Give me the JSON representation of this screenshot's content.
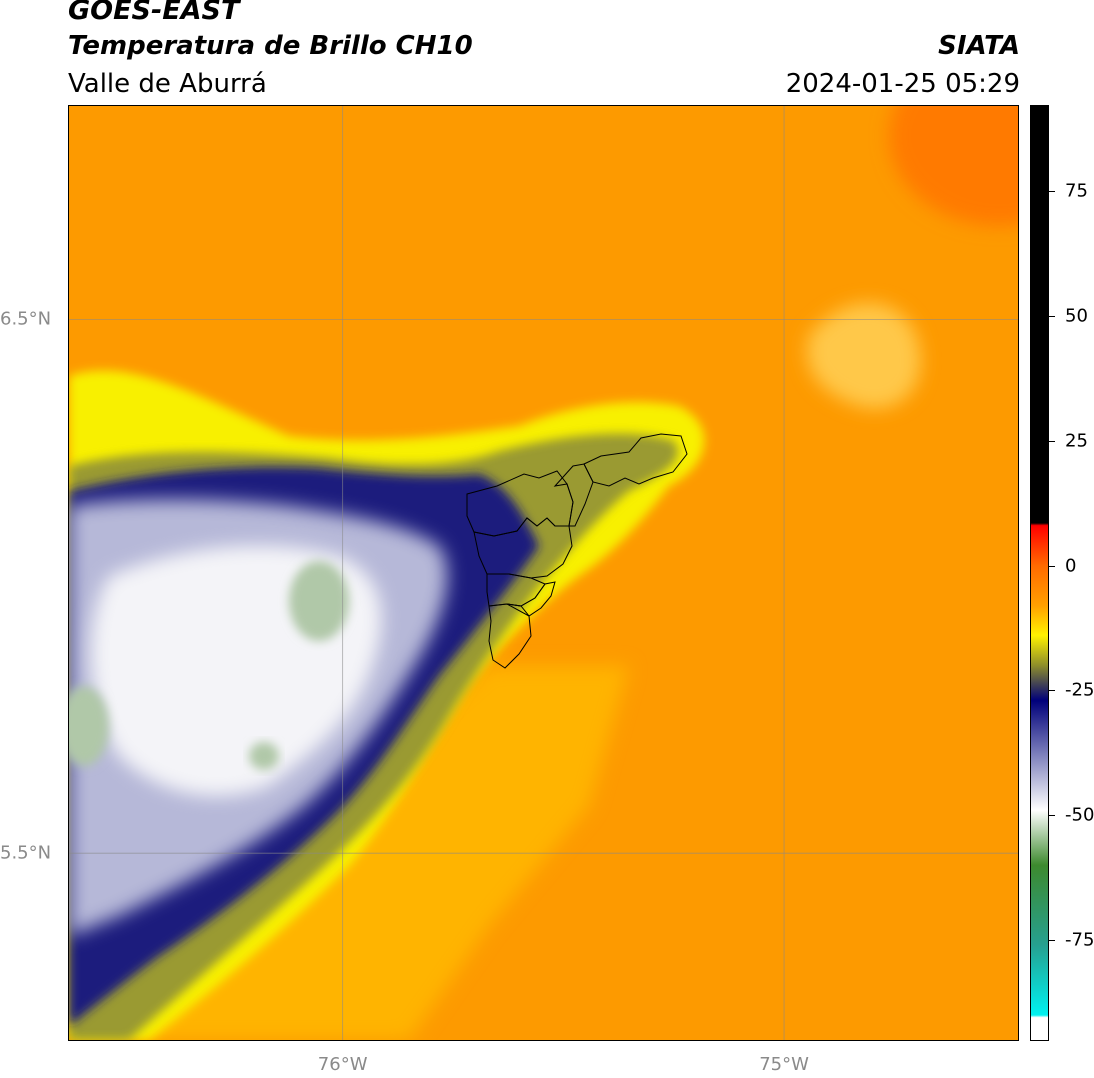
{
  "header": {
    "satellite": "GOES-EAST",
    "product": "Temperatura de Brillo CH10",
    "region": "Valle de Aburrá",
    "organization": "SIATA",
    "timestamp": "2024-01-25 05:29"
  },
  "map": {
    "lat_range": [
      5.15,
      6.9
    ],
    "lon_range": [
      -76.62,
      -74.47
    ],
    "lat_labels": [
      {
        "value": 6.5,
        "text": "6.5°N"
      },
      {
        "value": 5.5,
        "text": "5.5°N"
      }
    ],
    "lon_labels": [
      {
        "value": -76.0,
        "text": "76°W"
      },
      {
        "value": -75.0,
        "text": "75°W"
      }
    ],
    "grid": true,
    "overlay": "Valle de Aburrá municipal boundaries",
    "colors": {
      "warm_orange": "#fd9a00",
      "deep_orange": "#ff7a00",
      "amber": "#ffb400",
      "yellow": "#f8f000",
      "olive": "#9a9a30",
      "navy": "#1a1f7d",
      "lavender": "#b6b8d8",
      "white": "#f4f4f8",
      "pale_green": "#b0c8a8"
    }
  },
  "colorbar": {
    "label_values": [
      75,
      50,
      25,
      0,
      -25,
      -50,
      -75
    ],
    "labels": [
      "75",
      "50",
      "25",
      "0",
      "-25",
      "-50",
      "-75"
    ],
    "range": [
      -95,
      92
    ],
    "stops": [
      {
        "value": 92,
        "color": "#000000"
      },
      {
        "value": 8.5,
        "color": "#000000"
      },
      {
        "value": 8,
        "color": "#ff0000"
      },
      {
        "value": 0,
        "color": "#ff6a00"
      },
      {
        "value": -8,
        "color": "#ffa000"
      },
      {
        "value": -14,
        "color": "#fff200"
      },
      {
        "value": -20,
        "color": "#8e8e2a"
      },
      {
        "value": -27,
        "color": "#00007a"
      },
      {
        "value": -38,
        "color": "#7f82bd"
      },
      {
        "value": -49,
        "color": "#ffffff"
      },
      {
        "value": -60,
        "color": "#3d8a2e"
      },
      {
        "value": -76,
        "color": "#26a090"
      },
      {
        "value": -90,
        "color": "#00f2f0"
      },
      {
        "value": -90.5,
        "color": "#ffffff"
      },
      {
        "value": -95,
        "color": "#ffffff"
      }
    ]
  }
}
